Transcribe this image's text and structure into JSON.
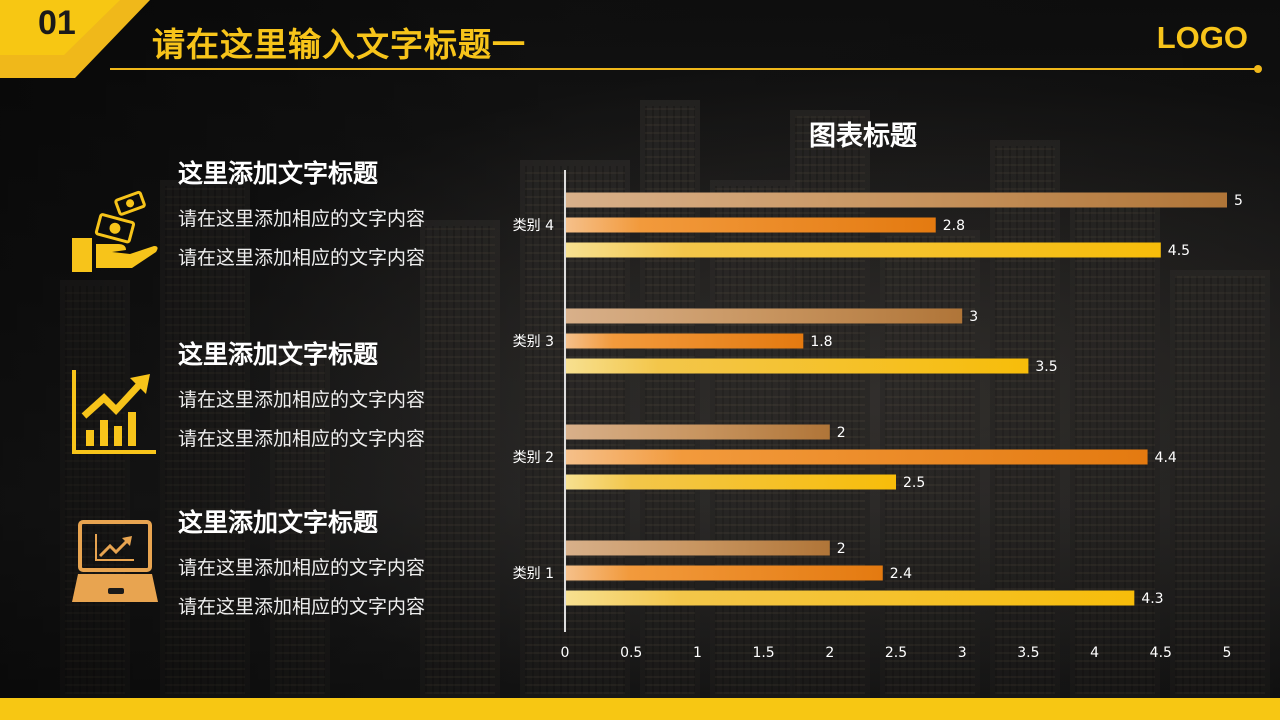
{
  "slide": {
    "number": "01",
    "title": "请在这里输入文字标题一",
    "logo": "LOGO"
  },
  "items": [
    {
      "icon": "money-hand-icon",
      "heading": "这里添加文字标题",
      "body": "请在这里添加相应的文字内容请在这里添加相应的文字内容"
    },
    {
      "icon": "growth-chart-icon",
      "heading": "这里添加文字标题",
      "body": "请在这里添加相应的文字内容请在这里添加相应的文字内容"
    },
    {
      "icon": "laptop-chart-icon",
      "heading": "这里添加文字标题",
      "body": "请在这里添加相应的文字内容请在这里添加相应的文字内容"
    }
  ],
  "colors": {
    "accent": "#f7c41a",
    "series1": "#d4a070",
    "series2": "#ef8e1e",
    "series3": "#f6c60f"
  },
  "chart_data": {
    "type": "bar",
    "orientation": "horizontal",
    "title": "图表标题",
    "categories": [
      "类别 1",
      "类别 2",
      "类别 3",
      "类别 4"
    ],
    "series": [
      {
        "values": [
          4.3,
          2.5,
          3.5,
          4.5
        ]
      },
      {
        "values": [
          2.4,
          4.4,
          1.8,
          2.8
        ]
      },
      {
        "values": [
          2,
          2,
          3,
          5
        ]
      }
    ],
    "xlim": [
      0,
      5
    ],
    "xticks": [
      "0",
      "0.5",
      "1",
      "1.5",
      "2",
      "2.5",
      "3",
      "3.5",
      "4",
      "4.5",
      "5"
    ],
    "grid": false,
    "legend": "none"
  }
}
